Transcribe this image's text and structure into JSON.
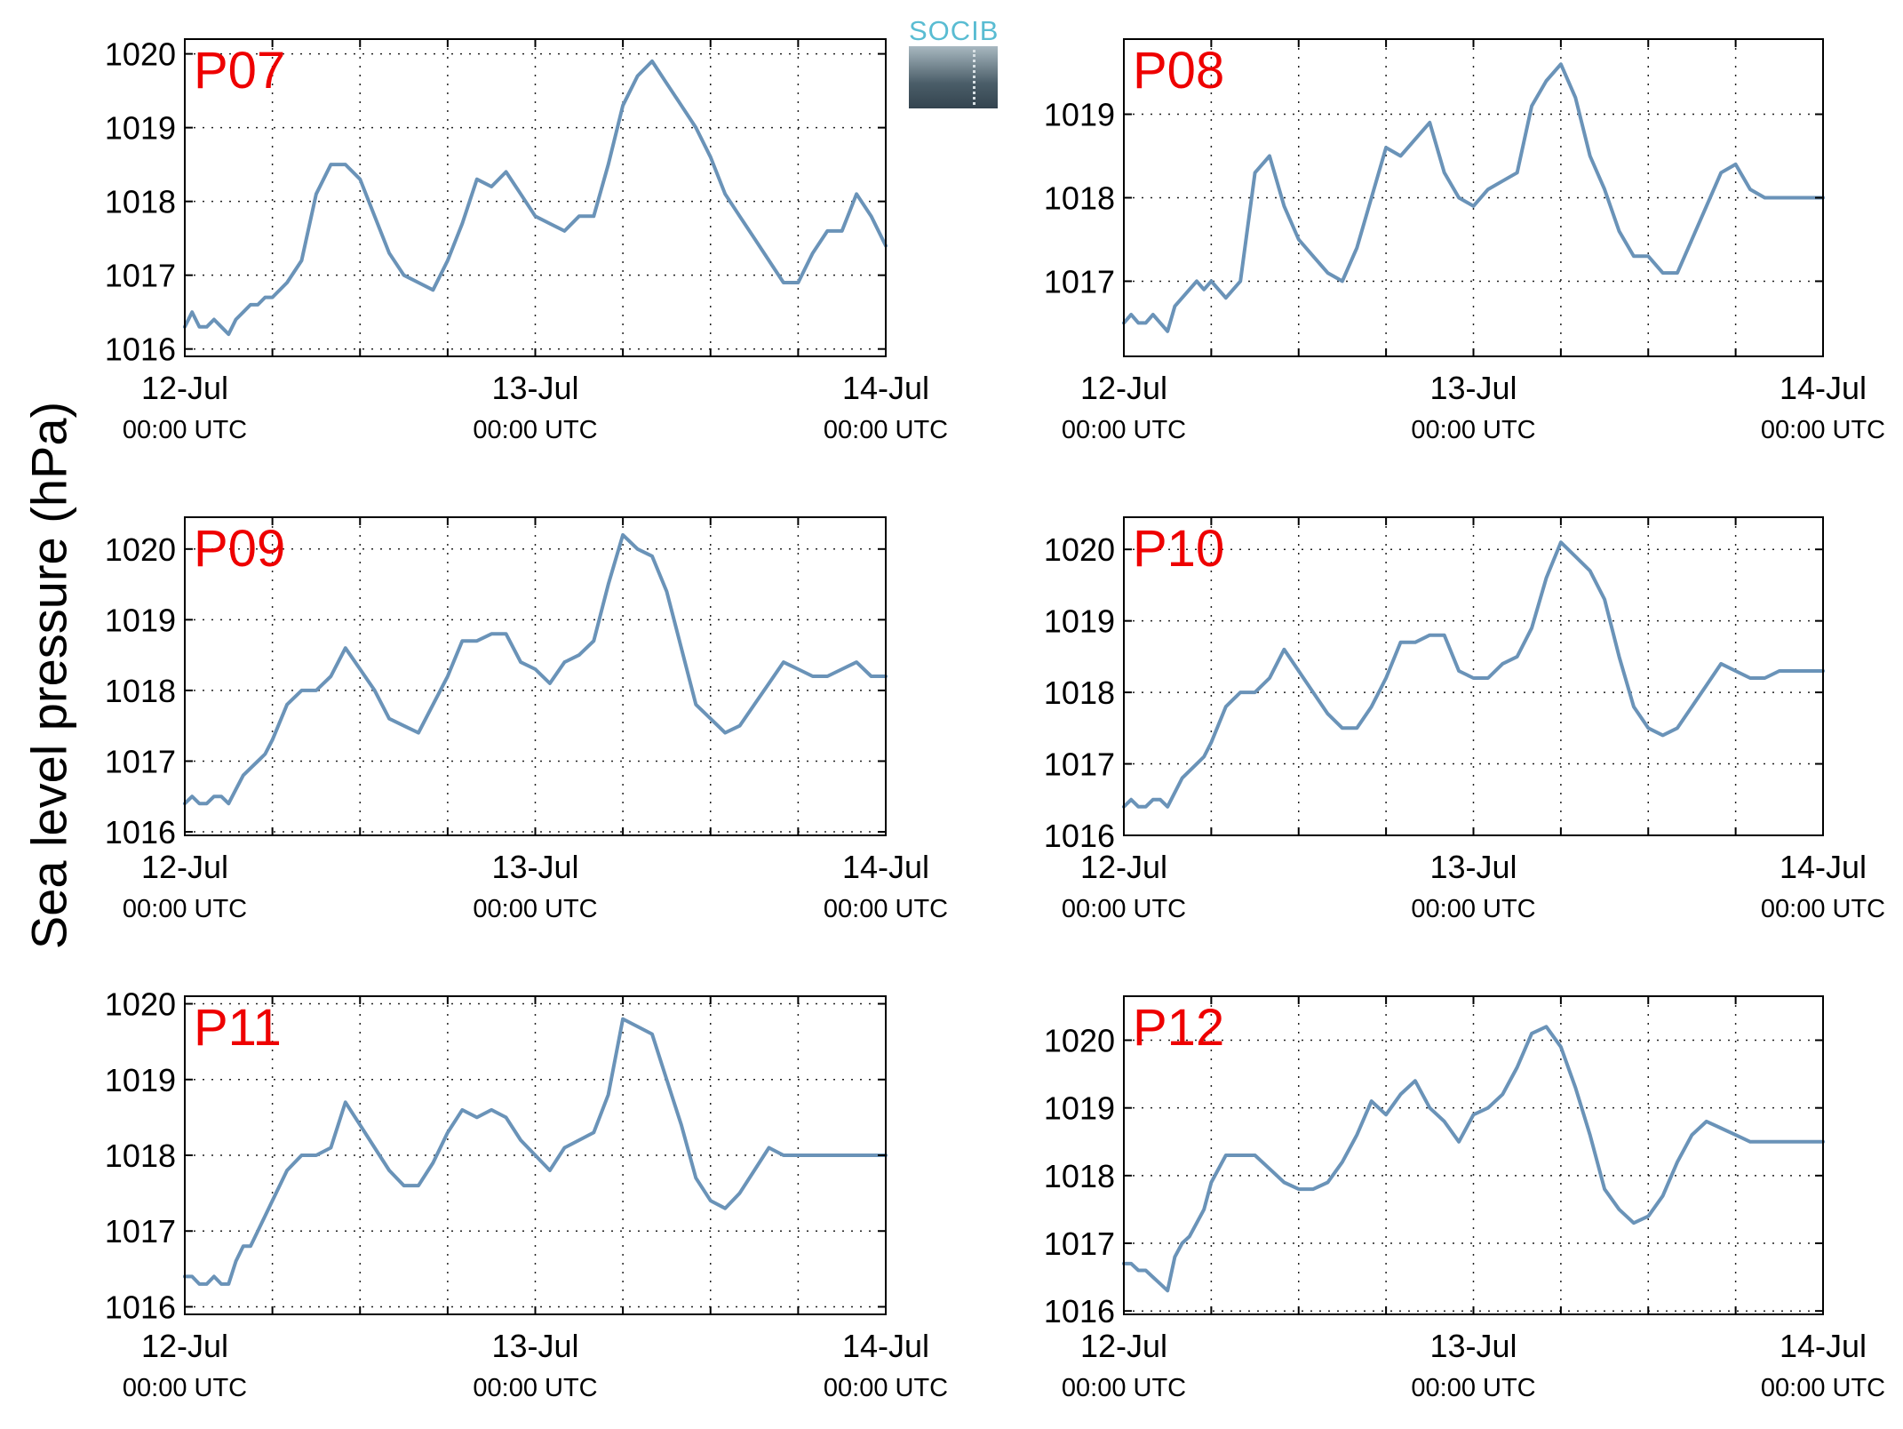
{
  "figure": {
    "ylabel": "Sea level pressure (hPa)",
    "logo_text": "SOCIB"
  },
  "chart_data": [
    {
      "type": "line",
      "title": "P07",
      "xlim": [
        0,
        48
      ],
      "ylim": [
        1015.9,
        1020.2
      ],
      "yticks": [
        1016,
        1017,
        1018,
        1019,
        1020
      ],
      "xticks": [
        {
          "hour": 0,
          "date": "12-Jul",
          "time": "00:00 UTC"
        },
        {
          "hour": 24,
          "date": "13-Jul",
          "time": "00:00 UTC"
        },
        {
          "hour": 48,
          "date": "14-Jul",
          "time": "00:00 UTC"
        }
      ],
      "grid_hours": [
        6,
        12,
        18,
        30,
        36,
        42
      ],
      "series": [
        {
          "color": "#6a93b8",
          "x": [
            0,
            0.5,
            1,
            1.5,
            2,
            2.5,
            3,
            3.5,
            4,
            4.5,
            5,
            5.5,
            6,
            7,
            8,
            9,
            10,
            11,
            12,
            13,
            14,
            15,
            16,
            17,
            18,
            19,
            20,
            21,
            22,
            23,
            24,
            25,
            26,
            27,
            28,
            29,
            30,
            31,
            32,
            33,
            34,
            35,
            36,
            37,
            38,
            39,
            40,
            41,
            42,
            43,
            44,
            45,
            46,
            47,
            48
          ],
          "y": [
            1016.3,
            1016.5,
            1016.3,
            1016.3,
            1016.4,
            1016.3,
            1016.2,
            1016.4,
            1016.5,
            1016.6,
            1016.6,
            1016.7,
            1016.7,
            1016.9,
            1017.2,
            1018.1,
            1018.5,
            1018.5,
            1018.3,
            1017.8,
            1017.3,
            1017.0,
            1016.9,
            1016.8,
            1017.2,
            1017.7,
            1018.3,
            1018.2,
            1018.4,
            1018.1,
            1017.8,
            1017.7,
            1017.6,
            1017.8,
            1017.8,
            1018.5,
            1019.3,
            1019.7,
            1019.9,
            1019.6,
            1019.3,
            1019.0,
            1018.6,
            1018.1,
            1017.8,
            1017.5,
            1017.2,
            1016.9,
            1016.9,
            1017.3,
            1017.6,
            1017.6,
            1018.1,
            1017.8,
            1017.4
          ]
        }
      ]
    },
    {
      "type": "line",
      "title": "P08",
      "xlim": [
        0,
        48
      ],
      "ylim": [
        1016.1,
        1019.9
      ],
      "yticks": [
        1017,
        1018,
        1019
      ],
      "xticks": [
        {
          "hour": 0,
          "date": "12-Jul",
          "time": "00:00 UTC"
        },
        {
          "hour": 24,
          "date": "13-Jul",
          "time": "00:00 UTC"
        },
        {
          "hour": 48,
          "date": "14-Jul",
          "time": "00:00 UTC"
        }
      ],
      "grid_hours": [
        6,
        12,
        18,
        30,
        36,
        42
      ],
      "series": [
        {
          "color": "#6a93b8",
          "x": [
            0,
            0.5,
            1,
            1.5,
            2,
            2.5,
            3,
            3.5,
            4,
            4.5,
            5,
            5.5,
            6,
            7,
            8,
            9,
            10,
            11,
            12,
            13,
            14,
            15,
            16,
            17,
            18,
            19,
            20,
            21,
            22,
            23,
            24,
            25,
            26,
            27,
            28,
            29,
            30,
            31,
            32,
            33,
            34,
            35,
            36,
            37,
            38,
            39,
            40,
            41,
            42,
            43,
            44,
            45,
            46,
            47,
            48
          ],
          "y": [
            1016.5,
            1016.6,
            1016.5,
            1016.5,
            1016.6,
            1016.5,
            1016.4,
            1016.7,
            1016.8,
            1016.9,
            1017.0,
            1016.9,
            1017.0,
            1016.8,
            1017.0,
            1018.3,
            1018.5,
            1017.9,
            1017.5,
            1017.3,
            1017.1,
            1017.0,
            1017.4,
            1018.0,
            1018.6,
            1018.5,
            1018.7,
            1018.9,
            1018.3,
            1018.0,
            1017.9,
            1018.1,
            1018.2,
            1018.3,
            1019.1,
            1019.4,
            1019.6,
            1019.2,
            1018.5,
            1018.1,
            1017.6,
            1017.3,
            1017.3,
            1017.1,
            1017.1,
            1017.5,
            1017.9,
            1018.3,
            1018.4,
            1018.1,
            1018.0,
            1018.0,
            1018.0,
            1018.0,
            1018.0
          ]
        }
      ]
    },
    {
      "type": "line",
      "title": "P09",
      "xlim": [
        0,
        48
      ],
      "ylim": [
        1015.95,
        1020.45
      ],
      "yticks": [
        1016,
        1017,
        1018,
        1019,
        1020
      ],
      "xticks": [
        {
          "hour": 0,
          "date": "12-Jul",
          "time": "00:00 UTC"
        },
        {
          "hour": 24,
          "date": "13-Jul",
          "time": "00:00 UTC"
        },
        {
          "hour": 48,
          "date": "14-Jul",
          "time": "00:00 UTC"
        }
      ],
      "grid_hours": [
        6,
        12,
        18,
        30,
        36,
        42
      ],
      "series": [
        {
          "color": "#6a93b8",
          "x": [
            0,
            0.5,
            1,
            1.5,
            2,
            2.5,
            3,
            3.5,
            4,
            4.5,
            5,
            5.5,
            6,
            7,
            8,
            9,
            10,
            11,
            12,
            13,
            14,
            15,
            16,
            17,
            18,
            19,
            20,
            21,
            22,
            23,
            24,
            25,
            26,
            27,
            28,
            29,
            30,
            31,
            32,
            33,
            34,
            35,
            36,
            37,
            38,
            39,
            40,
            41,
            42,
            43,
            44,
            45,
            46,
            47,
            48
          ],
          "y": [
            1016.4,
            1016.5,
            1016.4,
            1016.4,
            1016.5,
            1016.5,
            1016.4,
            1016.6,
            1016.8,
            1016.9,
            1017.0,
            1017.1,
            1017.3,
            1017.8,
            1018.0,
            1018.0,
            1018.2,
            1018.6,
            1018.3,
            1018.0,
            1017.6,
            1017.5,
            1017.4,
            1017.8,
            1018.2,
            1018.7,
            1018.7,
            1018.8,
            1018.8,
            1018.4,
            1018.3,
            1018.1,
            1018.4,
            1018.5,
            1018.7,
            1019.5,
            1020.2,
            1020.0,
            1019.9,
            1019.4,
            1018.6,
            1017.8,
            1017.6,
            1017.4,
            1017.5,
            1017.8,
            1018.1,
            1018.4,
            1018.3,
            1018.2,
            1018.2,
            1018.3,
            1018.4,
            1018.2,
            1018.2
          ]
        }
      ]
    },
    {
      "type": "line",
      "title": "P10",
      "xlim": [
        0,
        48
      ],
      "ylim": [
        1016.0,
        1020.45
      ],
      "yticks": [
        1016,
        1017,
        1018,
        1019,
        1020
      ],
      "xticks": [
        {
          "hour": 0,
          "date": "12-Jul",
          "time": "00:00 UTC"
        },
        {
          "hour": 24,
          "date": "13-Jul",
          "time": "00:00 UTC"
        },
        {
          "hour": 48,
          "date": "14-Jul",
          "time": "00:00 UTC"
        }
      ],
      "grid_hours": [
        6,
        12,
        18,
        30,
        36,
        42
      ],
      "series": [
        {
          "color": "#6a93b8",
          "x": [
            0,
            0.5,
            1,
            1.5,
            2,
            2.5,
            3,
            3.5,
            4,
            4.5,
            5,
            5.5,
            6,
            7,
            8,
            9,
            10,
            11,
            12,
            13,
            14,
            15,
            16,
            17,
            18,
            19,
            20,
            21,
            22,
            23,
            24,
            25,
            26,
            27,
            28,
            29,
            30,
            31,
            32,
            33,
            34,
            35,
            36,
            37,
            38,
            39,
            40,
            41,
            42,
            43,
            44,
            45,
            46,
            47,
            48
          ],
          "y": [
            1016.4,
            1016.5,
            1016.4,
            1016.4,
            1016.5,
            1016.5,
            1016.4,
            1016.6,
            1016.8,
            1016.9,
            1017.0,
            1017.1,
            1017.3,
            1017.8,
            1018.0,
            1018.0,
            1018.2,
            1018.6,
            1018.3,
            1018.0,
            1017.7,
            1017.5,
            1017.5,
            1017.8,
            1018.2,
            1018.7,
            1018.7,
            1018.8,
            1018.8,
            1018.3,
            1018.2,
            1018.2,
            1018.4,
            1018.5,
            1018.9,
            1019.6,
            1020.1,
            1019.9,
            1019.7,
            1019.3,
            1018.5,
            1017.8,
            1017.5,
            1017.4,
            1017.5,
            1017.8,
            1018.1,
            1018.4,
            1018.3,
            1018.2,
            1018.2,
            1018.3,
            1018.3,
            1018.3,
            1018.3
          ]
        }
      ]
    },
    {
      "type": "line",
      "title": "P11",
      "xlim": [
        0,
        48
      ],
      "ylim": [
        1015.9,
        1020.1
      ],
      "yticks": [
        1016,
        1017,
        1018,
        1019,
        1020
      ],
      "xticks": [
        {
          "hour": 0,
          "date": "12-Jul",
          "time": "00:00 UTC"
        },
        {
          "hour": 24,
          "date": "13-Jul",
          "time": "00:00 UTC"
        },
        {
          "hour": 48,
          "date": "14-Jul",
          "time": "00:00 UTC"
        }
      ],
      "grid_hours": [
        6,
        12,
        18,
        30,
        36,
        42
      ],
      "series": [
        {
          "color": "#6a93b8",
          "x": [
            0,
            0.5,
            1,
            1.5,
            2,
            2.5,
            3,
            3.5,
            4,
            4.5,
            5,
            5.5,
            6,
            7,
            8,
            9,
            10,
            11,
            12,
            13,
            14,
            15,
            16,
            17,
            18,
            19,
            20,
            21,
            22,
            23,
            24,
            25,
            26,
            27,
            28,
            29,
            30,
            31,
            32,
            33,
            34,
            35,
            36,
            37,
            38,
            39,
            40,
            41,
            42,
            43,
            44,
            45,
            46,
            47,
            48
          ],
          "y": [
            1016.4,
            1016.4,
            1016.3,
            1016.3,
            1016.4,
            1016.3,
            1016.3,
            1016.6,
            1016.8,
            1016.8,
            1017.0,
            1017.2,
            1017.4,
            1017.8,
            1018.0,
            1018.0,
            1018.1,
            1018.7,
            1018.4,
            1018.1,
            1017.8,
            1017.6,
            1017.6,
            1017.9,
            1018.3,
            1018.6,
            1018.5,
            1018.6,
            1018.5,
            1018.2,
            1018.0,
            1017.8,
            1018.1,
            1018.2,
            1018.3,
            1018.8,
            1019.8,
            1019.7,
            1019.6,
            1019.0,
            1018.4,
            1017.7,
            1017.4,
            1017.3,
            1017.5,
            1017.8,
            1018.1,
            1018.0,
            1018.0,
            1018.0,
            1018.0,
            1018.0,
            1018.0,
            1018.0,
            1018.0
          ]
        }
      ]
    },
    {
      "type": "line",
      "title": "P12",
      "xlim": [
        0,
        48
      ],
      "ylim": [
        1015.95,
        1020.65
      ],
      "yticks": [
        1016,
        1017,
        1018,
        1019,
        1020
      ],
      "xticks": [
        {
          "hour": 0,
          "date": "12-Jul",
          "time": "00:00 UTC"
        },
        {
          "hour": 24,
          "date": "13-Jul",
          "time": "00:00 UTC"
        },
        {
          "hour": 48,
          "date": "14-Jul",
          "time": "00:00 UTC"
        }
      ],
      "grid_hours": [
        6,
        12,
        18,
        30,
        36,
        42
      ],
      "series": [
        {
          "color": "#6a93b8",
          "x": [
            0,
            0.5,
            1,
            1.5,
            2,
            2.5,
            3,
            3.5,
            4,
            4.5,
            5,
            5.5,
            6,
            7,
            8,
            9,
            10,
            11,
            12,
            13,
            14,
            15,
            16,
            17,
            18,
            19,
            20,
            21,
            22,
            23,
            24,
            25,
            26,
            27,
            28,
            29,
            30,
            31,
            32,
            33,
            34,
            35,
            36,
            37,
            38,
            39,
            40,
            41,
            42,
            43,
            44,
            45,
            46,
            47,
            48
          ],
          "y": [
            1016.7,
            1016.7,
            1016.6,
            1016.6,
            1016.5,
            1016.4,
            1016.3,
            1016.8,
            1017.0,
            1017.1,
            1017.3,
            1017.5,
            1017.9,
            1018.3,
            1018.3,
            1018.3,
            1018.1,
            1017.9,
            1017.8,
            1017.8,
            1017.9,
            1018.2,
            1018.6,
            1019.1,
            1018.9,
            1019.2,
            1019.4,
            1019.0,
            1018.8,
            1018.5,
            1018.9,
            1019.0,
            1019.2,
            1019.6,
            1020.1,
            1020.2,
            1019.9,
            1019.3,
            1018.6,
            1017.8,
            1017.5,
            1017.3,
            1017.4,
            1017.7,
            1018.2,
            1018.6,
            1018.8,
            1018.7,
            1018.6,
            1018.5,
            1018.5,
            1018.5,
            1018.5,
            1018.5,
            1018.5
          ]
        }
      ]
    }
  ]
}
